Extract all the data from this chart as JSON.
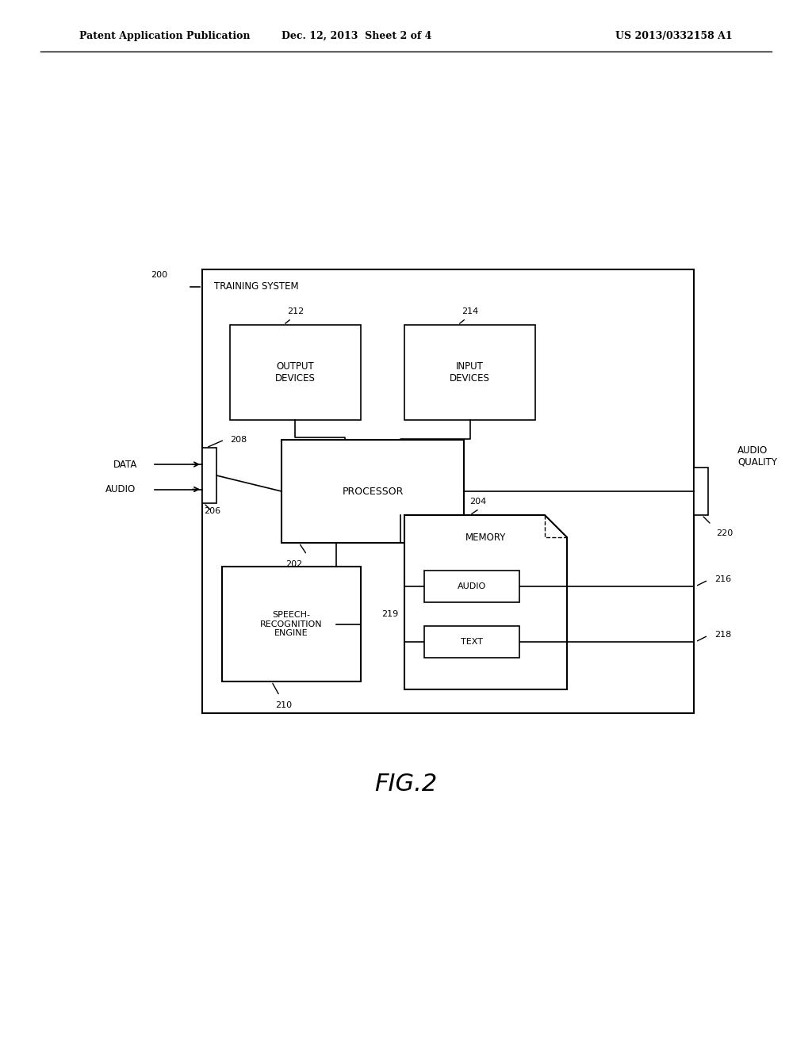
{
  "bg_color": "#ffffff",
  "header_left": "Patent Application Publication",
  "header_mid": "Dec. 12, 2013  Sheet 2 of 4",
  "header_right": "US 2013/0332158 A1",
  "fig_label": "FIG.2"
}
